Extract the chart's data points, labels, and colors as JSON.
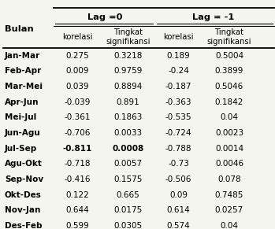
{
  "col_headers_top": [
    "Lag =0",
    "Lag = -1"
  ],
  "col_headers_sub": [
    "korelasi",
    "Tingkat\nsignifikansi",
    "korelasi",
    "Tingkat\nsignifikansi"
  ],
  "row_header": "Bulan",
  "rows": [
    [
      "Jan-Mar",
      "0.275",
      "0.3218",
      "0.189",
      "0.5004"
    ],
    [
      "Feb-Apr",
      "0.009",
      "0.9759",
      "-0.24",
      "0.3899"
    ],
    [
      "Mar-Mei",
      "0.039",
      "0.8894",
      "-0.187",
      "0.5046"
    ],
    [
      "Apr-Jun",
      "-0.039",
      "0.891",
      "-0.363",
      "0.1842"
    ],
    [
      "Mei-Jul",
      "-0.361",
      "0.1863",
      "-0.535",
      "0.04"
    ],
    [
      "Jun-Agu",
      "-0.706",
      "0.0033",
      "-0.724",
      "0.0023"
    ],
    [
      "Jul-Sep",
      "-0.811",
      "0.0008",
      "-0.788",
      "0.0014"
    ],
    [
      "Agu-Okt",
      "-0.718",
      "0.0057",
      "-0.73",
      "0.0046"
    ],
    [
      "Sep-Nov",
      "-0.416",
      "0.1575",
      "-0.506",
      "0.078"
    ],
    [
      "Okt-Des",
      "0.122",
      "0.665",
      "0.09",
      "0.7485"
    ],
    [
      "Nov-Jan",
      "0.644",
      "0.0175",
      "0.614",
      "0.0257"
    ],
    [
      "Des-Feb",
      "0.599",
      "0.0305",
      "0.574",
      "0.04"
    ]
  ],
  "bold_row": "Jul-Sep",
  "bold_cols_in_bold_row": [
    1,
    2
  ],
  "bg_color": "#f5f5f0",
  "text_color": "#000000",
  "font_size": 7.5,
  "header_font_size": 8.2
}
